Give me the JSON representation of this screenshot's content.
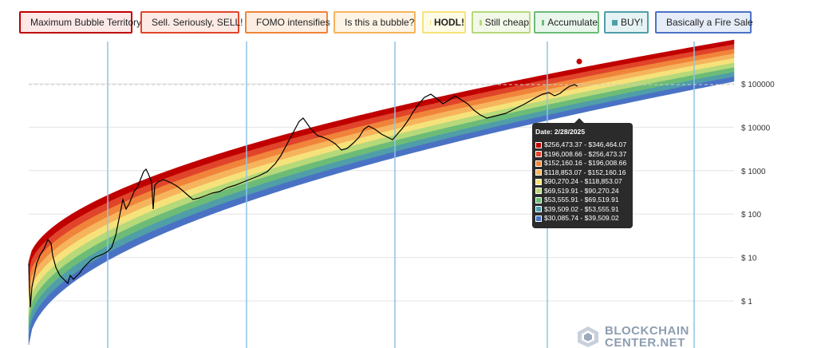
{
  "legend": [
    {
      "label": "Maximum Bubble Territory",
      "color": "#c00000",
      "border": "#c00000",
      "bg": "#fde8e8",
      "bold": false
    },
    {
      "label": "Sell. Seriously, SELL!",
      "color": "#e0442a",
      "border": "#e0442a",
      "bg": "#fdeae4",
      "bold": false
    },
    {
      "label": "FOMO intensifies",
      "color": "#f0843a",
      "border": "#f0843a",
      "bg": "#fdeee2",
      "bold": false
    },
    {
      "label": "Is this a bubble?",
      "color": "#f6b45c",
      "border": "#f6b45c",
      "bg": "#fef4e6",
      "bold": false
    },
    {
      "label": "HODL!",
      "color": "#f6e27a",
      "border": "#f6e27a",
      "bg": "#fefbe6",
      "bold": true
    },
    {
      "label": "Still cheap",
      "color": "#b6d97a",
      "border": "#b6d97a",
      "bg": "#f2f9e8",
      "bold": false
    },
    {
      "label": "Accumulate",
      "color": "#6cbc78",
      "border": "#6cbc78",
      "bg": "#e9f6ec",
      "bold": false
    },
    {
      "label": "BUY!",
      "color": "#4f9ea8",
      "border": "#4f9ea8",
      "bg": "#e6f3f5",
      "bold": false
    },
    {
      "label": "Basically a Fire Sale",
      "color": "#4a72c4",
      "border": "#4a72c4",
      "bg": "#e6edf8",
      "bold": false
    }
  ],
  "chart_data": {
    "type": "area",
    "y_scale": "log",
    "ylim": [
      0.1,
      1000000
    ],
    "y_ticks": [
      {
        "value": 1,
        "label": "$ 1"
      },
      {
        "value": 10,
        "label": "$ 10"
      },
      {
        "value": 100,
        "label": "$ 100"
      },
      {
        "value": 1000,
        "label": "$ 1000"
      },
      {
        "value": 10000,
        "label": "$ 10000"
      },
      {
        "value": 100000,
        "label": "$ 100000"
      }
    ],
    "band_colors": [
      "#c00000",
      "#e0442a",
      "#f0843a",
      "#f6b45c",
      "#f6e27a",
      "#b6d97a",
      "#6cbc78",
      "#4f9ea8",
      "#4a72c4"
    ],
    "price_series_color": "#000000",
    "halving_line_color": "#8fc3e6",
    "crosshair_value": 96000
  },
  "tooltip": {
    "title": "Date: 2/28/2025",
    "rows": [
      {
        "label": "$256,473.37 - $346,464.07",
        "color": "#c00000"
      },
      {
        "label": "$196,008.66 - $256,473.37",
        "color": "#e0442a"
      },
      {
        "label": "$152,160.16 - $196,008.66",
        "color": "#f0843a"
      },
      {
        "label": "$118,853.07 - $152,160.16",
        "color": "#f6b45c"
      },
      {
        "label": "$90,270.24 - $118,853.07",
        "color": "#f6e27a"
      },
      {
        "label": "$69,519.91 - $90,270.24",
        "color": "#b6d97a"
      },
      {
        "label": "$53,555.91 - $69,519.91",
        "color": "#6cbc78"
      },
      {
        "label": "$39,509.02 - $53,555.91",
        "color": "#4f9ea8"
      },
      {
        "label": "$30,085.74 - $39,509.02",
        "color": "#4a72c4"
      }
    ]
  },
  "watermark": {
    "line1": "BLOCKCHAIN",
    "line2": "CENTER.NET"
  }
}
